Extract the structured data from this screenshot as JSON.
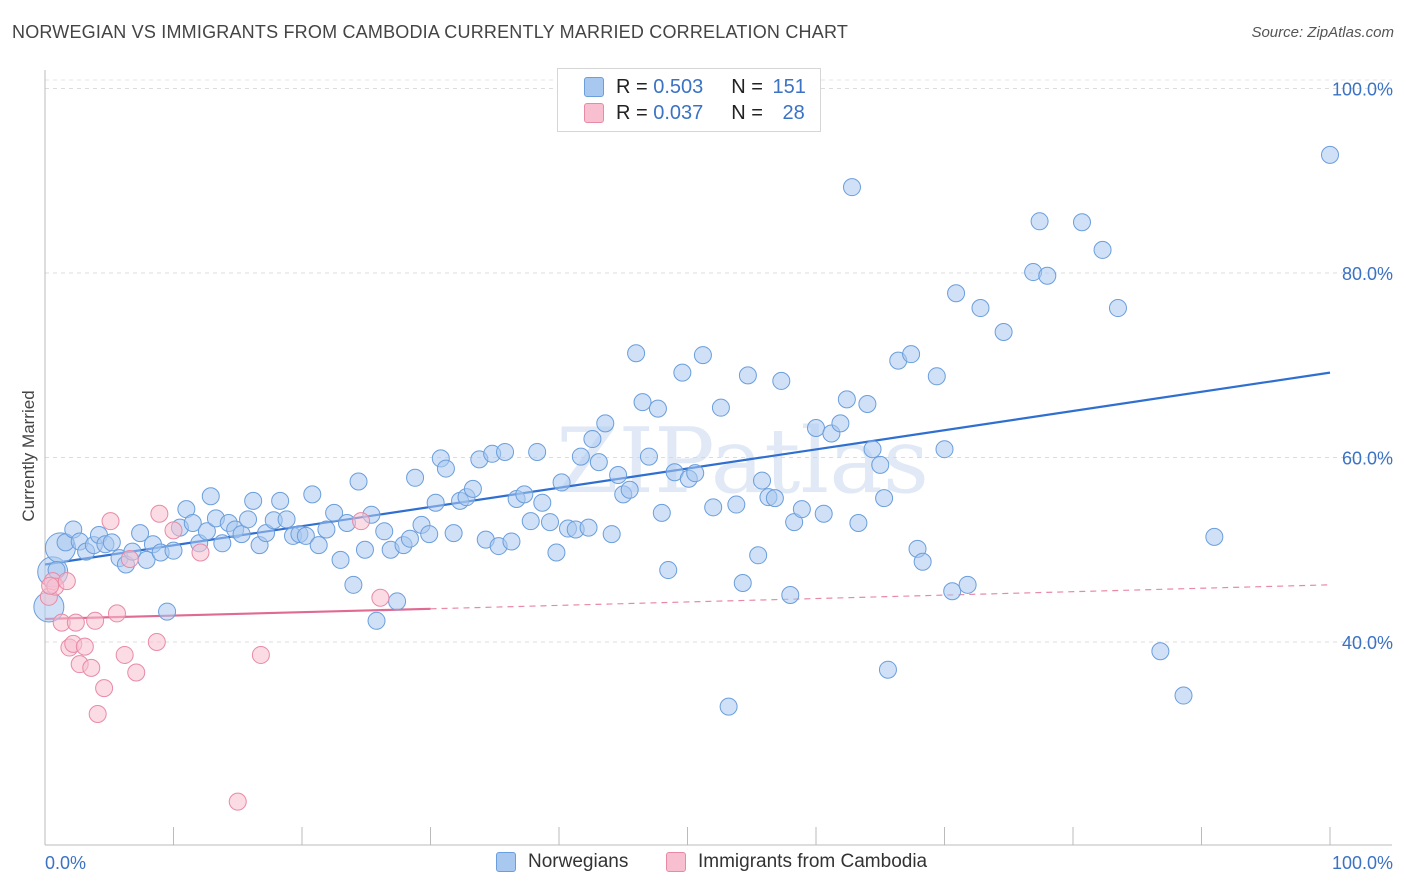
{
  "title": "NORWEGIAN VS IMMIGRANTS FROM CAMBODIA CURRENTLY MARRIED CORRELATION CHART",
  "source": "Source: ZipAtlas.com",
  "watermark": "ZIPatlas",
  "legend": {
    "rows": [
      {
        "r_label": "R =",
        "r_value": "0.503",
        "n_label": "N =",
        "n_value": "151",
        "color": "#a9c8f0",
        "border": "#6a9edc"
      },
      {
        "r_label": "R =",
        "r_value": "0.037",
        "n_label": "N =",
        "n_value": "28",
        "color": "#f7bfd0",
        "border": "#e88aa6"
      }
    ]
  },
  "bottom_legend": [
    {
      "label": "Norwegians",
      "color": "#a9c8f0",
      "border": "#6a9edc"
    },
    {
      "label": "Immigrants from Cambodia",
      "color": "#f7bfd0",
      "border": "#e88aa6"
    }
  ],
  "chart_data": {
    "type": "scatter",
    "ylabel": "Currently Married",
    "xlabel": "",
    "xlim": [
      0,
      100
    ],
    "ylim": [
      18,
      102
    ],
    "x_tick_labels": [
      "0.0%",
      "100.0%"
    ],
    "y_ticks": [
      40,
      60,
      80,
      100
    ],
    "y_tick_labels": [
      "40.0%",
      "60.0%",
      "80.0%",
      "100.0%"
    ],
    "grid": true,
    "series": [
      {
        "name": "Norwegians",
        "color": "#6a9edc",
        "fill": "#a9c8f0",
        "trend": {
          "x": [
            0,
            100
          ],
          "y": [
            48.4,
            69.2
          ],
          "style": "solid"
        },
        "points": [
          [
            0.3,
            43.8
          ],
          [
            0.6,
            47.6
          ],
          [
            1.2,
            50.2
          ],
          [
            1.6,
            50.8
          ],
          [
            2.2,
            52.2
          ],
          [
            2.7,
            50.9
          ],
          [
            3.2,
            49.8
          ],
          [
            3.8,
            50.5
          ],
          [
            4.2,
            51.6
          ],
          [
            4.7,
            50.6
          ],
          [
            5.2,
            50.8
          ],
          [
            5.8,
            49.1
          ],
          [
            6.3,
            48.4
          ],
          [
            6.8,
            49.8
          ],
          [
            7.4,
            51.8
          ],
          [
            7.9,
            48.9
          ],
          [
            8.4,
            50.6
          ],
          [
            9.0,
            49.7
          ],
          [
            9.5,
            43.3
          ],
          [
            10.0,
            49.9
          ],
          [
            10.5,
            52.4
          ],
          [
            11.0,
            54.4
          ],
          [
            11.5,
            52.9
          ],
          [
            12.0,
            50.7
          ],
          [
            12.6,
            52.0
          ],
          [
            12.9,
            55.8
          ],
          [
            13.3,
            53.4
          ],
          [
            13.8,
            50.7
          ],
          [
            14.3,
            52.9
          ],
          [
            14.8,
            52.2
          ],
          [
            15.3,
            51.7
          ],
          [
            15.8,
            53.3
          ],
          [
            16.2,
            55.3
          ],
          [
            16.7,
            50.5
          ],
          [
            17.2,
            51.8
          ],
          [
            17.8,
            53.2
          ],
          [
            18.3,
            55.3
          ],
          [
            18.8,
            53.3
          ],
          [
            19.3,
            51.5
          ],
          [
            19.8,
            51.7
          ],
          [
            20.3,
            51.5
          ],
          [
            20.8,
            56.0
          ],
          [
            21.3,
            50.5
          ],
          [
            21.9,
            52.2
          ],
          [
            22.5,
            54.0
          ],
          [
            23.0,
            48.9
          ],
          [
            23.5,
            52.9
          ],
          [
            24.0,
            46.2
          ],
          [
            24.4,
            57.4
          ],
          [
            24.9,
            50.0
          ],
          [
            25.4,
            53.8
          ],
          [
            25.8,
            42.3
          ],
          [
            26.4,
            52.0
          ],
          [
            26.9,
            50.0
          ],
          [
            27.4,
            44.4
          ],
          [
            27.9,
            50.5
          ],
          [
            28.4,
            51.2
          ],
          [
            28.8,
            57.8
          ],
          [
            29.3,
            52.7
          ],
          [
            29.9,
            51.7
          ],
          [
            30.4,
            55.1
          ],
          [
            30.8,
            59.9
          ],
          [
            31.2,
            58.8
          ],
          [
            31.8,
            51.8
          ],
          [
            32.3,
            55.3
          ],
          [
            32.8,
            55.7
          ],
          [
            33.3,
            56.6
          ],
          [
            33.8,
            59.8
          ],
          [
            34.3,
            51.1
          ],
          [
            34.8,
            60.4
          ],
          [
            35.3,
            50.4
          ],
          [
            35.8,
            60.6
          ],
          [
            36.3,
            50.9
          ],
          [
            36.7,
            55.5
          ],
          [
            37.3,
            56.0
          ],
          [
            37.8,
            53.1
          ],
          [
            38.3,
            60.6
          ],
          [
            38.7,
            55.1
          ],
          [
            39.3,
            53.0
          ],
          [
            39.8,
            49.7
          ],
          [
            40.2,
            57.3
          ],
          [
            40.7,
            52.3
          ],
          [
            41.3,
            52.2
          ],
          [
            41.7,
            60.1
          ],
          [
            42.3,
            52.4
          ],
          [
            42.6,
            62.0
          ],
          [
            43.1,
            59.5
          ],
          [
            43.6,
            63.7
          ],
          [
            44.1,
            51.7
          ],
          [
            44.6,
            58.1
          ],
          [
            45.0,
            56.0
          ],
          [
            45.5,
            56.5
          ],
          [
            46.0,
            71.3
          ],
          [
            46.5,
            66.0
          ],
          [
            47.0,
            60.1
          ],
          [
            47.7,
            65.3
          ],
          [
            48.0,
            54.0
          ],
          [
            48.5,
            47.8
          ],
          [
            49.0,
            58.4
          ],
          [
            49.6,
            69.2
          ],
          [
            50.1,
            57.7
          ],
          [
            50.6,
            58.3
          ],
          [
            51.2,
            71.1
          ],
          [
            52.0,
            54.6
          ],
          [
            52.6,
            65.4
          ],
          [
            53.2,
            33.0
          ],
          [
            53.8,
            54.9
          ],
          [
            54.3,
            46.4
          ],
          [
            54.7,
            68.9
          ],
          [
            55.5,
            49.4
          ],
          [
            55.8,
            57.5
          ],
          [
            56.3,
            55.7
          ],
          [
            56.8,
            55.6
          ],
          [
            57.3,
            68.3
          ],
          [
            58.0,
            45.1
          ],
          [
            58.3,
            53.0
          ],
          [
            58.9,
            54.4
          ],
          [
            60.0,
            63.2
          ],
          [
            60.6,
            53.9
          ],
          [
            61.2,
            62.6
          ],
          [
            61.9,
            63.7
          ],
          [
            62.4,
            66.3
          ],
          [
            62.8,
            89.3
          ],
          [
            63.3,
            52.9
          ],
          [
            64.0,
            65.8
          ],
          [
            64.4,
            60.9
          ],
          [
            65.0,
            59.2
          ],
          [
            65.3,
            55.6
          ],
          [
            65.6,
            37.0
          ],
          [
            66.4,
            70.5
          ],
          [
            67.4,
            71.2
          ],
          [
            67.9,
            50.1
          ],
          [
            68.3,
            48.7
          ],
          [
            69.4,
            68.8
          ],
          [
            70.0,
            60.9
          ],
          [
            70.6,
            45.5
          ],
          [
            70.9,
            77.8
          ],
          [
            71.8,
            46.2
          ],
          [
            72.8,
            76.2
          ],
          [
            74.6,
            73.6
          ],
          [
            76.9,
            80.1
          ],
          [
            77.4,
            85.6
          ],
          [
            78.0,
            79.7
          ],
          [
            80.7,
            85.5
          ],
          [
            82.3,
            82.5
          ],
          [
            83.5,
            76.2
          ],
          [
            86.8,
            39.0
          ],
          [
            88.6,
            34.2
          ],
          [
            91.0,
            51.4
          ],
          [
            100.0,
            92.8
          ],
          [
            0.9,
            47.8
          ]
        ],
        "big_points": [
          [
            0.3,
            43.8
          ],
          [
            0.6,
            47.6
          ],
          [
            1.2,
            50.2
          ]
        ]
      },
      {
        "name": "Immigrants from Cambodia",
        "color": "#e88aa6",
        "fill": "#f7bfd0",
        "trend": {
          "x": [
            0,
            30
          ],
          "y": [
            42.5,
            43.6
          ],
          "style": "solid",
          "extended": {
            "x": [
              30,
              100
            ],
            "y": [
              43.6,
              46.2
            ],
            "style": "dashed"
          }
        },
        "points": [
          [
            0.3,
            44.9
          ],
          [
            0.6,
            46.6
          ],
          [
            0.8,
            46.0
          ],
          [
            1.3,
            42.1
          ],
          [
            1.7,
            46.6
          ],
          [
            1.9,
            39.4
          ],
          [
            2.2,
            39.8
          ],
          [
            2.4,
            42.1
          ],
          [
            2.7,
            37.6
          ],
          [
            3.1,
            39.5
          ],
          [
            3.6,
            37.2
          ],
          [
            3.9,
            42.3
          ],
          [
            4.1,
            32.2
          ],
          [
            4.6,
            35.0
          ],
          [
            5.1,
            53.1
          ],
          [
            5.6,
            43.1
          ],
          [
            6.2,
            38.6
          ],
          [
            6.6,
            49.0
          ],
          [
            7.1,
            36.7
          ],
          [
            8.7,
            40.0
          ],
          [
            8.9,
            53.9
          ],
          [
            10.0,
            52.1
          ],
          [
            12.1,
            49.7
          ],
          [
            15.0,
            22.7
          ],
          [
            16.8,
            38.6
          ],
          [
            24.6,
            53.1
          ],
          [
            26.1,
            44.8
          ],
          [
            0.4,
            46.1
          ]
        ]
      }
    ]
  }
}
